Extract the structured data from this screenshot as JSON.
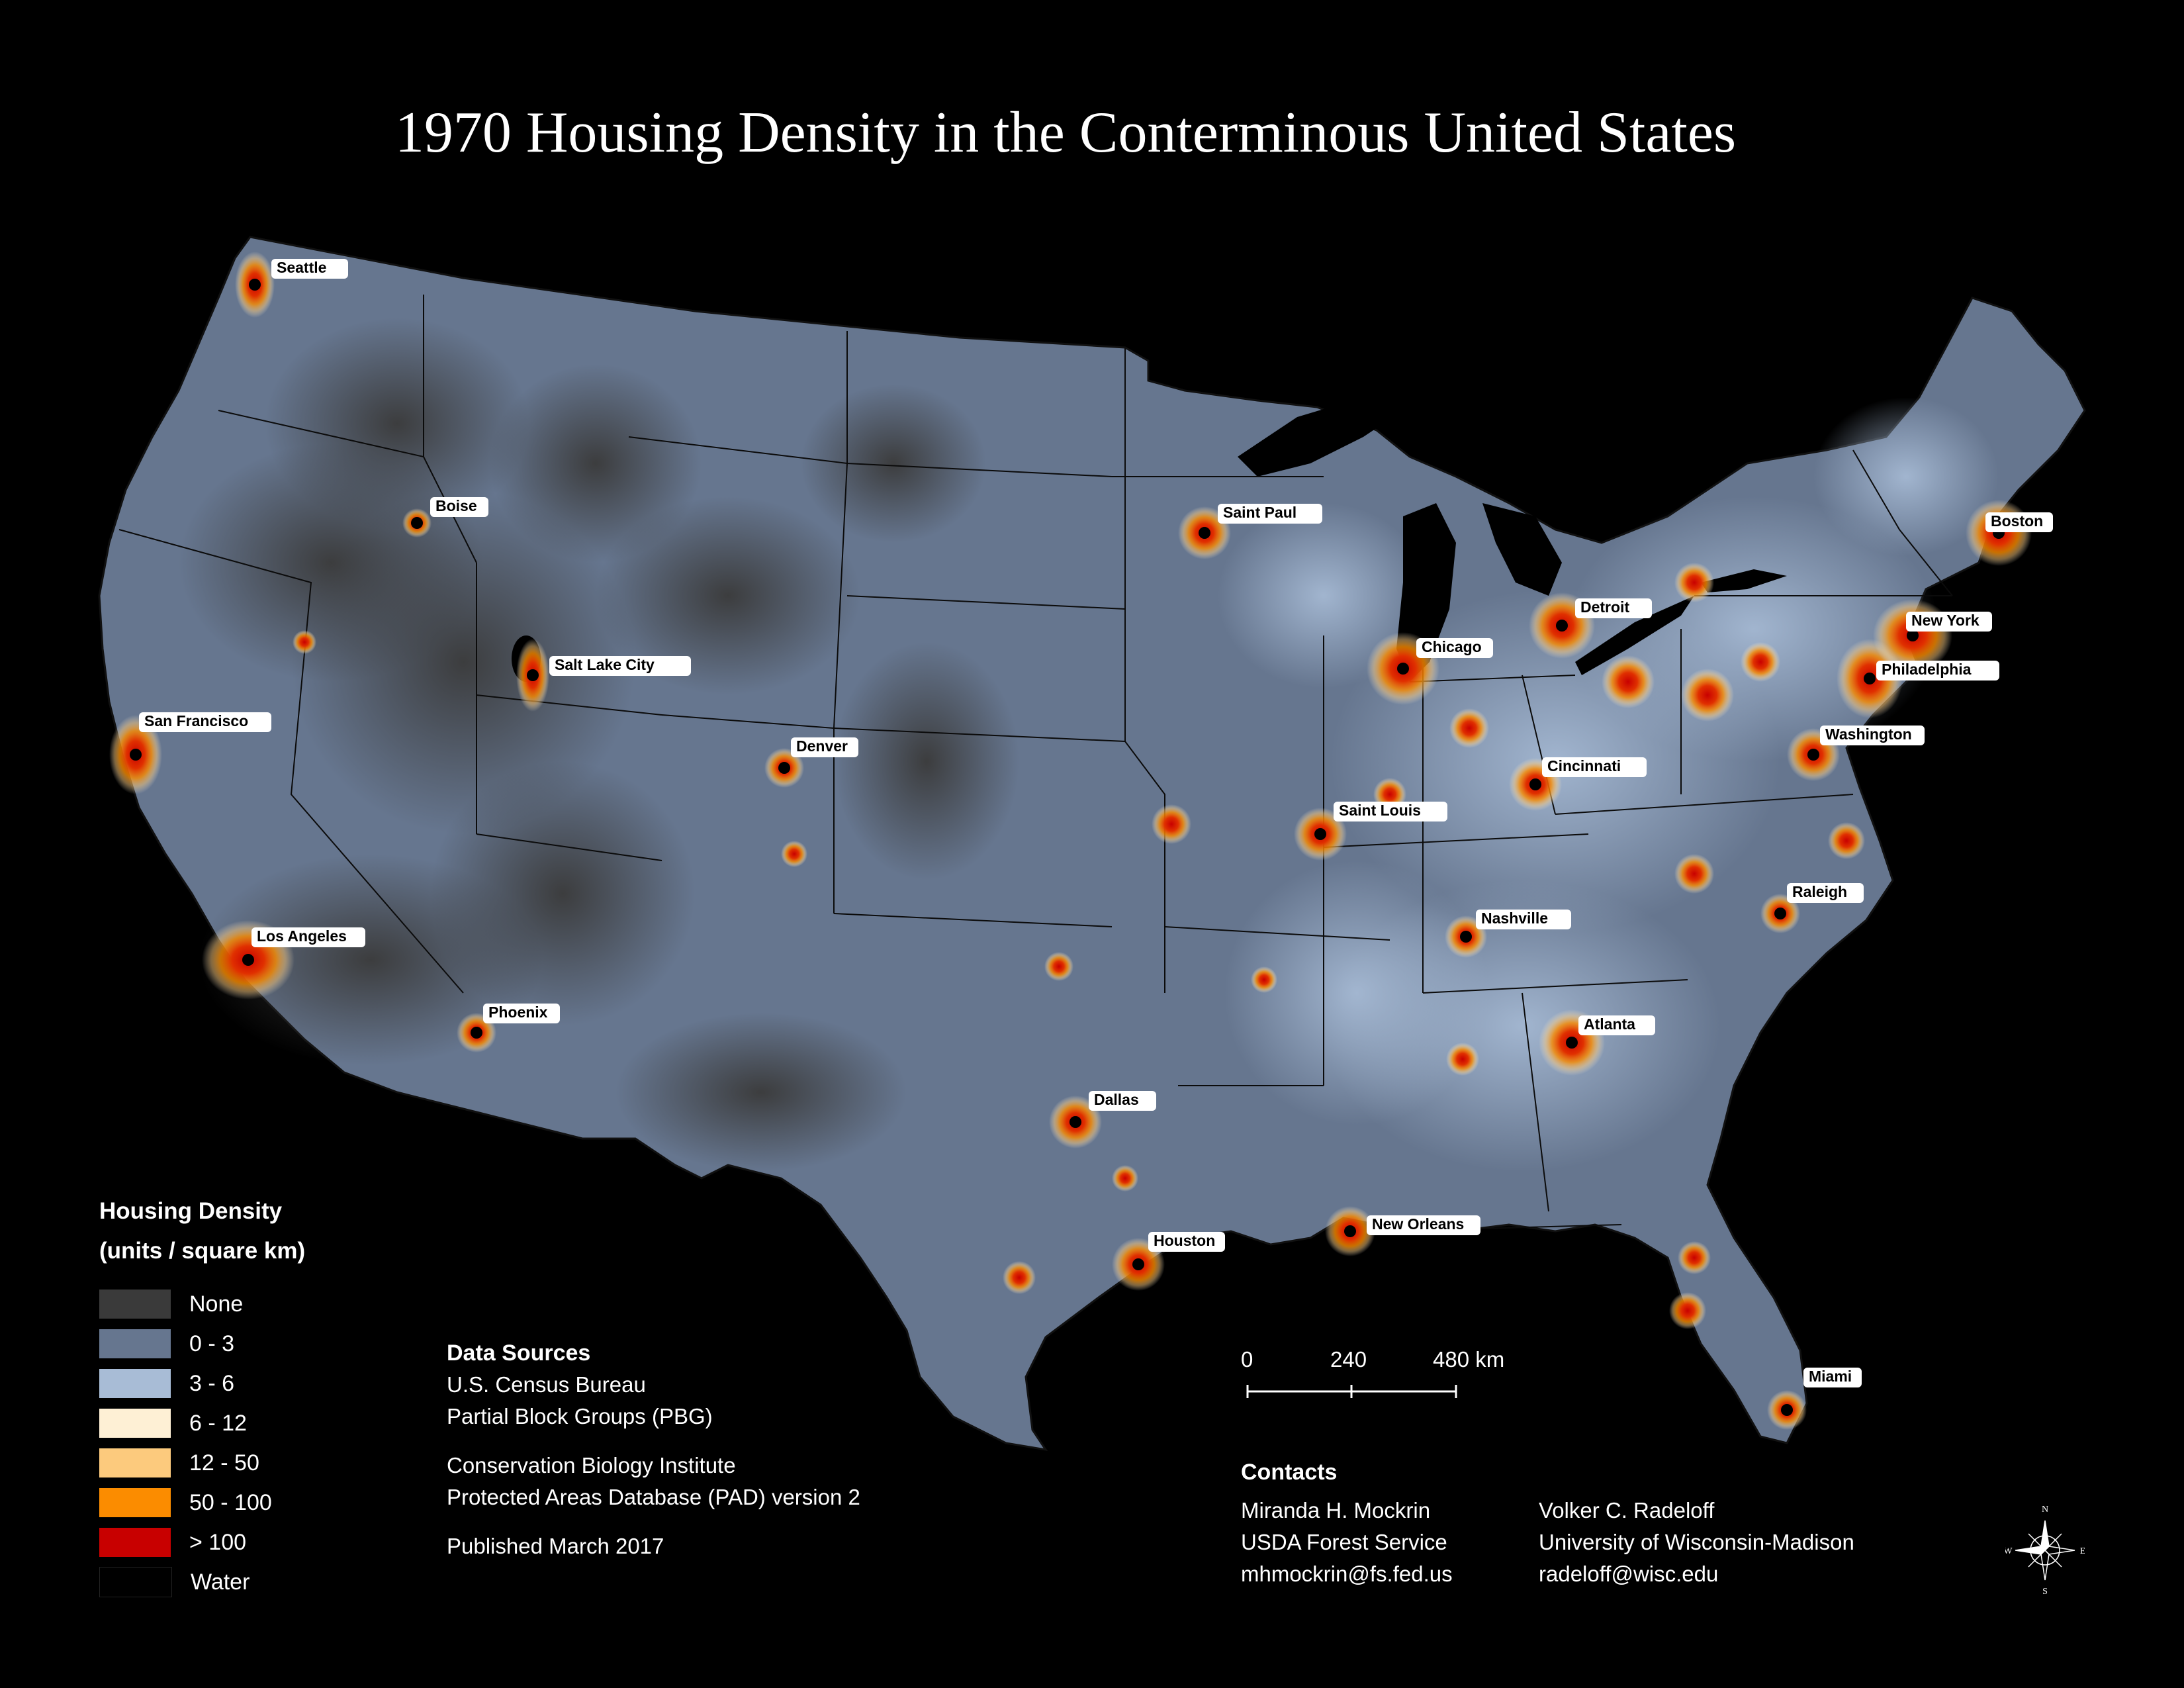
{
  "title": "1970 Housing Density in the Conterminous United States",
  "colors": {
    "none": "#3a3a3a",
    "d0_3": "#66768f",
    "d3_6": "#a8bcd6",
    "d6_12": "#fef0d5",
    "d12_50": "#fcca7d",
    "d50_100": "#fb8c00",
    "gt100": "#c80000",
    "water": "#000000"
  },
  "cities": [
    {
      "name": "Seattle"
    },
    {
      "name": "Boise"
    },
    {
      "name": "Salt Lake City"
    },
    {
      "name": "San Francisco"
    },
    {
      "name": "Los Angeles"
    },
    {
      "name": "Phoenix"
    },
    {
      "name": "Denver"
    },
    {
      "name": "Saint Paul"
    },
    {
      "name": "Dallas"
    },
    {
      "name": "Houston"
    },
    {
      "name": "New Orleans"
    },
    {
      "name": "Saint Louis"
    },
    {
      "name": "Chicago"
    },
    {
      "name": "Detroit"
    },
    {
      "name": "Cincinnati"
    },
    {
      "name": "Nashville"
    },
    {
      "name": "Atlanta"
    },
    {
      "name": "Miami"
    },
    {
      "name": "Raleigh"
    },
    {
      "name": "Washington"
    },
    {
      "name": "Philadelphia"
    },
    {
      "name": "New York"
    },
    {
      "name": "Boston"
    }
  ],
  "legend": {
    "title": "Housing Density",
    "units": "(units / square km)",
    "items": [
      {
        "label": "None",
        "color": "#3a3a3a"
      },
      {
        "label": "0 - 3",
        "color": "#66768f"
      },
      {
        "label": "3 - 6",
        "color": "#a8bcd6"
      },
      {
        "label": "6 - 12",
        "color": "#fef0d5"
      },
      {
        "label": "12 - 50",
        "color": "#fcca7d"
      },
      {
        "label": "50 - 100",
        "color": "#fb8c00"
      },
      {
        "label": "> 100",
        "color": "#c80000"
      },
      {
        "label": "Water",
        "color": "#000000"
      }
    ]
  },
  "sources": {
    "heading": "Data Sources",
    "line1": "U.S. Census Bureau",
    "line2": "Partial Block Groups (PBG)",
    "line3": "Conservation Biology Institute",
    "line4": "Protected Areas Database (PAD) version 2",
    "published": "Published March 2017"
  },
  "scalebar": {
    "t0": "0",
    "t1": "240",
    "t2": "480 km"
  },
  "contacts": {
    "heading": "Contacts",
    "person1": {
      "name": "Miranda H. Mockrin",
      "org": "USDA Forest Service",
      "email": "mhmockrin@fs.fed.us"
    },
    "person2": {
      "name": "Volker C. Radeloff",
      "org": "University of Wisconsin-Madison",
      "email": "radeloff@wisc.edu"
    }
  },
  "compass": {
    "n": "N",
    "s": "S",
    "e": "E",
    "w": "W"
  }
}
